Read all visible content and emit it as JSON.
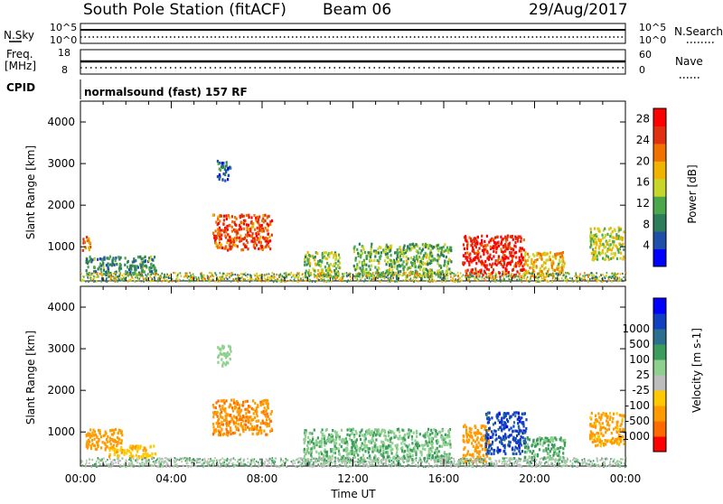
{
  "header": {
    "station": "South Pole Station (fitACF)",
    "beam": "Beam 06",
    "date": "29/Aug/2017"
  },
  "top_panels": {
    "nsky_label": "N.Sky",
    "nsearch_label": "N.Search",
    "noise_ticks_left": [
      "10^5",
      "10^0"
    ],
    "noise_ticks_right": [
      "10^5",
      "10^0"
    ],
    "freq_label_1": "Freq.",
    "freq_label_2": "[MHz]",
    "freq_ticks": [
      "18",
      "8"
    ],
    "nave_label": "Nave",
    "nave_ticks": [
      "60",
      "0"
    ],
    "cpid_label": "CPID",
    "cpid_text": "normalsound (fast) 157 RF"
  },
  "colors": {
    "power_scale": [
      "#0000ff",
      "#1f4fa8",
      "#2e7d5a",
      "#4aa84a",
      "#c8d62a",
      "#f0b400",
      "#f07000",
      "#e03010",
      "#ff0000"
    ],
    "velocity_scale": [
      "#ff0000",
      "#ff6a00",
      "#ff9a00",
      "#ffc800",
      "#bdbdbd",
      "#8ed08e",
      "#3c9c5c",
      "#2c7090",
      "#1040c0",
      "#0000ff"
    ]
  },
  "chart_data": [
    {
      "type": "heatmap",
      "name": "power",
      "xlabel": "",
      "ylabel": "Slant Range [km]",
      "ylim": [
        180,
        4500
      ],
      "yticks": [
        "1000",
        "2000",
        "3000",
        "4000"
      ],
      "colorbar": {
        "label": "Power [dB]",
        "ticks": [
          "4",
          "8",
          "12",
          "16",
          "20",
          "24",
          "28"
        ],
        "range": [
          0,
          30
        ]
      },
      "regions": [
        {
          "t0": 0.0,
          "t1": 0.4,
          "r0": 900,
          "r1": 1300,
          "value": 22
        },
        {
          "t0": 0.2,
          "t1": 3.3,
          "r0": 350,
          "r1": 800,
          "value": 9
        },
        {
          "t0": 5.8,
          "t1": 8.4,
          "r0": 950,
          "r1": 1800,
          "value": 24
        },
        {
          "t0": 6.0,
          "t1": 6.6,
          "r0": 2600,
          "r1": 3100,
          "value": 7
        },
        {
          "t0": 9.8,
          "t1": 11.4,
          "r0": 300,
          "r1": 900,
          "value": 14
        },
        {
          "t0": 12.0,
          "t1": 16.3,
          "r0": 300,
          "r1": 1100,
          "value": 12
        },
        {
          "t0": 16.8,
          "t1": 19.5,
          "r0": 300,
          "r1": 1300,
          "value": 27
        },
        {
          "t0": 19.5,
          "t1": 21.3,
          "r0": 300,
          "r1": 900,
          "value": 18
        },
        {
          "t0": 22.4,
          "t1": 23.9,
          "r0": 700,
          "r1": 1500,
          "value": 15
        }
      ]
    },
    {
      "type": "heatmap",
      "name": "velocity",
      "xlabel": "Time UT",
      "ylabel": "Slant Range [km]",
      "ylim": [
        180,
        4500
      ],
      "xticks": [
        "00:00",
        "04:00",
        "08:00",
        "12:00",
        "16:00",
        "20:00",
        "00:00"
      ],
      "yticks": [
        "1000",
        "2000",
        "3000",
        "4000"
      ],
      "colorbar": {
        "label": "Velocity [m s-1]",
        "ticks": [
          "-1000",
          "-500",
          "-100",
          "-25",
          "25",
          "100",
          "500",
          "1000"
        ]
      },
      "regions": [
        {
          "t0": 0.2,
          "t1": 1.8,
          "r0": 600,
          "r1": 1100,
          "value": -300
        },
        {
          "t0": 1.2,
          "t1": 3.3,
          "r0": 400,
          "r1": 700,
          "value": -80
        },
        {
          "t0": 5.8,
          "t1": 8.4,
          "r0": 950,
          "r1": 1800,
          "value": -400
        },
        {
          "t0": 6.0,
          "t1": 6.6,
          "r0": 2600,
          "r1": 3100,
          "value": 60
        },
        {
          "t0": 9.8,
          "t1": 16.3,
          "r0": 300,
          "r1": 1100,
          "value": 90
        },
        {
          "t0": 16.8,
          "t1": 18.0,
          "r0": 300,
          "r1": 1200,
          "value": -200
        },
        {
          "t0": 17.8,
          "t1": 19.6,
          "r0": 500,
          "r1": 1500,
          "value": 700
        },
        {
          "t0": 19.5,
          "t1": 21.3,
          "r0": 300,
          "r1": 900,
          "value": 120
        },
        {
          "t0": 22.4,
          "t1": 23.9,
          "r0": 700,
          "r1": 1500,
          "value": -150
        }
      ]
    }
  ]
}
